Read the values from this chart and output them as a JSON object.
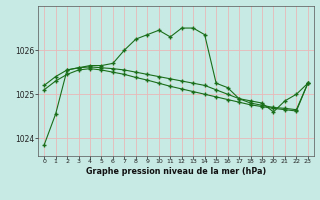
{
  "title": "Graphe pression niveau de la mer (hPa)",
  "bg_color": "#c8eae4",
  "plot_bg_color": "#c8eae4",
  "grid_color": "#e8b8b8",
  "line_color": "#1a6e1a",
  "xlim": [
    -0.5,
    23.5
  ],
  "ylim": [
    1023.6,
    1027.0
  ],
  "yticks": [
    1024,
    1025,
    1026
  ],
  "xticks": [
    0,
    1,
    2,
    3,
    4,
    5,
    6,
    7,
    8,
    9,
    10,
    11,
    12,
    13,
    14,
    15,
    16,
    17,
    18,
    19,
    20,
    21,
    22,
    23
  ],
  "series1_x": [
    0,
    1,
    2,
    3,
    4,
    5,
    6,
    7,
    8,
    9,
    10,
    11,
    12,
    13,
    14,
    15,
    16,
    17,
    18,
    19,
    20,
    21,
    22,
    23
  ],
  "series1_y": [
    1023.85,
    1024.55,
    1025.55,
    1025.6,
    1025.65,
    1025.65,
    1025.7,
    1026.0,
    1026.25,
    1026.35,
    1026.45,
    1026.3,
    1026.5,
    1026.5,
    1026.35,
    1025.25,
    1025.15,
    1024.9,
    1024.85,
    1024.8,
    1024.6,
    1024.85,
    1025.0,
    1025.25
  ],
  "series2_x": [
    0,
    1,
    2,
    3,
    4,
    5,
    6,
    7,
    8,
    9,
    10,
    11,
    12,
    13,
    14,
    15,
    16,
    17,
    18,
    19,
    20,
    21,
    22,
    23
  ],
  "series2_y": [
    1025.2,
    1025.4,
    1025.55,
    1025.6,
    1025.62,
    1025.6,
    1025.58,
    1025.55,
    1025.5,
    1025.45,
    1025.4,
    1025.35,
    1025.3,
    1025.25,
    1025.2,
    1025.1,
    1025.0,
    1024.9,
    1024.8,
    1024.75,
    1024.7,
    1024.68,
    1024.65,
    1025.25
  ],
  "series3_x": [
    0,
    1,
    2,
    3,
    4,
    5,
    6,
    7,
    8,
    9,
    10,
    11,
    12,
    13,
    14,
    15,
    16,
    17,
    18,
    19,
    20,
    21,
    22,
    23
  ],
  "series3_y": [
    1025.1,
    1025.3,
    1025.45,
    1025.55,
    1025.58,
    1025.55,
    1025.5,
    1025.45,
    1025.38,
    1025.32,
    1025.25,
    1025.18,
    1025.12,
    1025.06,
    1025.0,
    1024.94,
    1024.88,
    1024.82,
    1024.76,
    1024.72,
    1024.68,
    1024.65,
    1024.62,
    1025.25
  ]
}
